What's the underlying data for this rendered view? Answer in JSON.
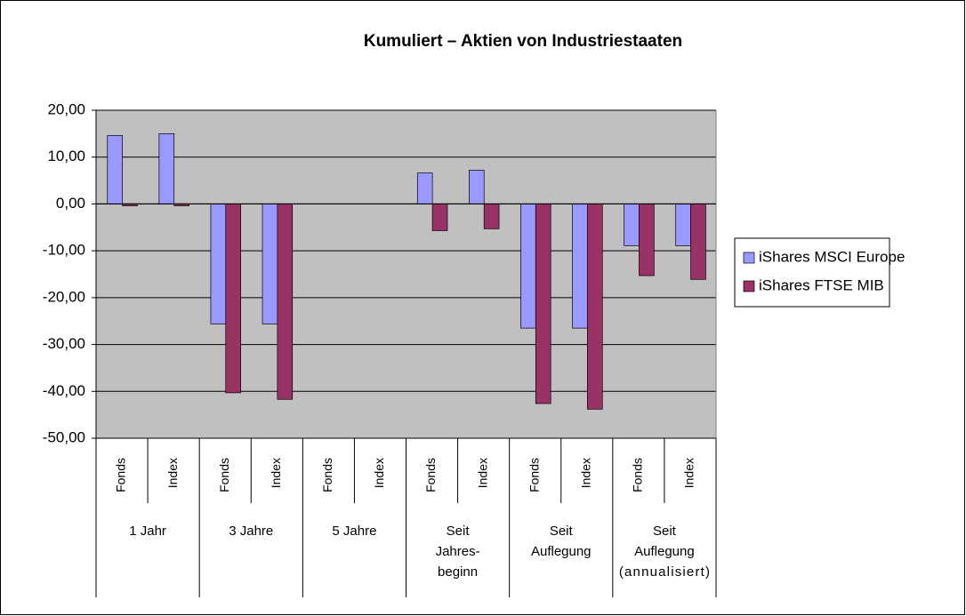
{
  "chart_data": {
    "type": "bar",
    "title": "Kumuliert – Aktien von Industriestaaten",
    "categories": [
      "Fonds",
      "Index",
      "Fonds",
      "Index",
      "Fonds",
      "Index",
      "Fonds",
      "Index",
      "Fonds",
      "Index",
      "Fonds",
      "Index"
    ],
    "groups": [
      [
        "1 Jahr"
      ],
      [
        "3 Jahre"
      ],
      [
        "5 Jahre"
      ],
      [
        "Seit",
        "Jahres-",
        "beginn"
      ],
      [
        "Seit",
        "Auflegung"
      ],
      [
        "Seit",
        "Auflegung",
        "(annualisiert)"
      ]
    ],
    "series": [
      {
        "name": "iShares MSCI Europe",
        "color": "#9999ff",
        "values": [
          14.6,
          15.0,
          -25.6,
          -25.6,
          null,
          null,
          6.6,
          7.2,
          -26.5,
          -26.5,
          -8.9,
          -8.9
        ]
      },
      {
        "name": "iShares FTSE MIB",
        "color": "#993366",
        "values": [
          -0.4,
          -0.4,
          -40.3,
          -41.7,
          null,
          null,
          -5.7,
          -5.3,
          -42.6,
          -43.8,
          -15.3,
          -16.1
        ]
      }
    ],
    "ylim": [
      -50,
      20
    ],
    "yticks": [
      {
        "value": 20,
        "label": "20,00"
      },
      {
        "value": 10,
        "label": "10,00"
      },
      {
        "value": 0,
        "label": "0,00"
      },
      {
        "value": -10,
        "label": "-10,00"
      },
      {
        "value": -20,
        "label": "-20,00"
      },
      {
        "value": -30,
        "label": "-30,00"
      },
      {
        "value": -40,
        "label": "-40,00"
      },
      {
        "value": -50,
        "label": "-50,00"
      }
    ],
    "grid": true,
    "legend": "right"
  }
}
